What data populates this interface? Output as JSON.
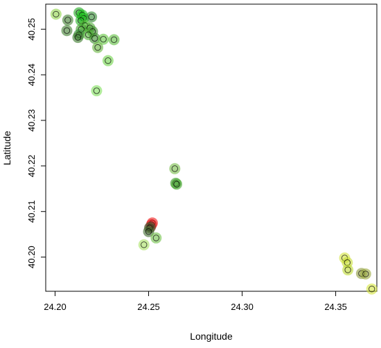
{
  "chart_data": {
    "type": "scatter",
    "xlabel": "Longitude",
    "ylabel": "Latitude",
    "xlim": [
      24.195,
      24.372
    ],
    "ylim": [
      40.1925,
      40.2555
    ],
    "x_ticks": [
      "24.20",
      "24.25",
      "24.30",
      "24.35"
    ],
    "y_ticks": [
      "40.20",
      "40.21",
      "40.22",
      "40.23",
      "40.24",
      "40.25"
    ],
    "grid": false,
    "legend": "none",
    "points": [
      {
        "x": 24.2005,
        "y": 40.2533,
        "color": "#8fd54a"
      },
      {
        "x": 24.2068,
        "y": 40.252,
        "color": "#3f7f2f"
      },
      {
        "x": 24.2063,
        "y": 40.2497,
        "color": "#3f7f2f"
      },
      {
        "x": 24.2128,
        "y": 40.2536,
        "color": "#1ea81e"
      },
      {
        "x": 24.2145,
        "y": 40.2531,
        "color": "#16c016"
      },
      {
        "x": 24.2152,
        "y": 40.2524,
        "color": "#1ec81e"
      },
      {
        "x": 24.2138,
        "y": 40.2519,
        "color": "#27b427"
      },
      {
        "x": 24.2195,
        "y": 40.2527,
        "color": "#2e8a2e"
      },
      {
        "x": 24.216,
        "y": 40.2508,
        "color": "#5bc03c"
      },
      {
        "x": 24.2186,
        "y": 40.2503,
        "color": "#4fae36"
      },
      {
        "x": 24.214,
        "y": 40.25,
        "color": "#3c9c2a"
      },
      {
        "x": 24.22,
        "y": 40.2495,
        "color": "#3a8a2a"
      },
      {
        "x": 24.2128,
        "y": 40.2488,
        "color": "#2f8a2f"
      },
      {
        "x": 24.2122,
        "y": 40.2482,
        "color": "#3a7a2a"
      },
      {
        "x": 24.2178,
        "y": 40.2488,
        "color": "#55b43a"
      },
      {
        "x": 24.2212,
        "y": 40.248,
        "color": "#3a8a2a"
      },
      {
        "x": 24.2258,
        "y": 40.2478,
        "color": "#63c640"
      },
      {
        "x": 24.2315,
        "y": 40.2477,
        "color": "#5cbc3c"
      },
      {
        "x": 24.2228,
        "y": 40.246,
        "color": "#66b43c"
      },
      {
        "x": 24.2283,
        "y": 40.2431,
        "color": "#6ed448"
      },
      {
        "x": 24.2222,
        "y": 40.2365,
        "color": "#7ee05a"
      },
      {
        "x": 24.264,
        "y": 40.2194,
        "color": "#74ba46"
      },
      {
        "x": 24.2645,
        "y": 40.2162,
        "color": "#3c9c2a"
      },
      {
        "x": 24.265,
        "y": 40.216,
        "color": "#49a832"
      },
      {
        "x": 24.252,
        "y": 40.2075,
        "color": "#f01818"
      },
      {
        "x": 24.2515,
        "y": 40.2071,
        "color": "#ea1e1e"
      },
      {
        "x": 24.251,
        "y": 40.2066,
        "color": "#7a3a2a"
      },
      {
        "x": 24.2505,
        "y": 40.2064,
        "color": "#505a32"
      },
      {
        "x": 24.25,
        "y": 40.2056,
        "color": "#3f6a2f"
      },
      {
        "x": 24.254,
        "y": 40.2042,
        "color": "#6ec046"
      },
      {
        "x": 24.2475,
        "y": 40.2027,
        "color": "#a6e060"
      },
      {
        "x": 24.3548,
        "y": 40.1998,
        "color": "#d2e33c"
      },
      {
        "x": 24.3562,
        "y": 40.1988,
        "color": "#c6dc34"
      },
      {
        "x": 24.3565,
        "y": 40.1972,
        "color": "#bcd82e"
      },
      {
        "x": 24.3638,
        "y": 40.1964,
        "color": "#8c9a3a"
      },
      {
        "x": 24.366,
        "y": 40.1963,
        "color": "#9aa83c"
      },
      {
        "x": 24.3693,
        "y": 40.193,
        "color": "#d4e43c"
      }
    ]
  }
}
